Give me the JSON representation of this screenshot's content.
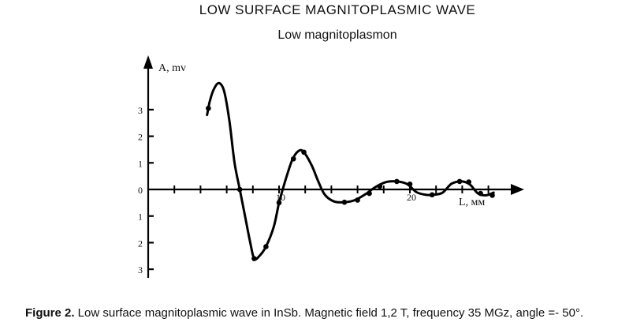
{
  "chart_data": {
    "type": "line",
    "title": "LOW SURFACE MAGNITOPLASMIC WAVE",
    "subtitle": "Low magnitoplasmon",
    "ylabel": "A, mv",
    "xlabel": "L, мм",
    "xlim": [
      0,
      28
    ],
    "ylim": [
      -3.2,
      4.5
    ],
    "y_ticks": [
      {
        "value": 3,
        "label": "3"
      },
      {
        "value": 2,
        "label": "2"
      },
      {
        "value": 1,
        "label": "1"
      },
      {
        "value": 0,
        "label": "0"
      },
      {
        "value": -1,
        "label": "1"
      },
      {
        "value": -2,
        "label": "2"
      },
      {
        "value": -3,
        "label": "3"
      }
    ],
    "x_ticks": [
      2,
      4,
      6,
      8,
      10,
      12,
      14,
      16,
      18,
      20,
      22,
      24,
      26
    ],
    "x_tick_labels": [
      {
        "value": 10,
        "label": "10"
      },
      {
        "value": 20,
        "label": "20"
      }
    ],
    "series": [
      {
        "name": "Low magnitoplasmon",
        "curve": [
          [
            4.5,
            2.8
          ],
          [
            4.7,
            3.3
          ],
          [
            5.0,
            3.75
          ],
          [
            5.4,
            4.0
          ],
          [
            5.8,
            3.7
          ],
          [
            6.2,
            2.6
          ],
          [
            6.6,
            1.0
          ],
          [
            7.0,
            0.0
          ],
          [
            7.4,
            -1.0
          ],
          [
            7.8,
            -2.0
          ],
          [
            8.1,
            -2.6
          ],
          [
            8.5,
            -2.5
          ],
          [
            9.0,
            -2.15
          ],
          [
            9.6,
            -1.4
          ],
          [
            10.0,
            -0.5
          ],
          [
            10.4,
            0.2
          ],
          [
            11.0,
            1.1
          ],
          [
            11.5,
            1.45
          ],
          [
            11.9,
            1.4
          ],
          [
            12.5,
            0.9
          ],
          [
            13.0,
            0.3
          ],
          [
            13.5,
            -0.2
          ],
          [
            14.2,
            -0.45
          ],
          [
            15.0,
            -0.48
          ],
          [
            15.8,
            -0.4
          ],
          [
            16.6,
            -0.18
          ],
          [
            17.4,
            0.1
          ],
          [
            18.2,
            0.28
          ],
          [
            19.0,
            0.3
          ],
          [
            19.8,
            0.2
          ],
          [
            20.5,
            -0.1
          ],
          [
            21.2,
            -0.2
          ],
          [
            21.8,
            -0.2
          ],
          [
            22.5,
            -0.12
          ],
          [
            23.2,
            0.22
          ],
          [
            24.0,
            0.3
          ],
          [
            24.6,
            0.18
          ],
          [
            25.2,
            -0.15
          ],
          [
            25.8,
            -0.22
          ],
          [
            26.4,
            -0.12
          ]
        ],
        "markers": [
          [
            4.6,
            3.05
          ],
          [
            7.0,
            0.0
          ],
          [
            8.1,
            -2.6
          ],
          [
            9.0,
            -2.15
          ],
          [
            10.0,
            -0.5
          ],
          [
            11.1,
            1.15
          ],
          [
            11.9,
            1.4
          ],
          [
            15.0,
            -0.48
          ],
          [
            16.0,
            -0.4
          ],
          [
            16.9,
            -0.15
          ],
          [
            17.7,
            0.12
          ],
          [
            19.0,
            0.3
          ],
          [
            20.0,
            0.2
          ],
          [
            21.7,
            -0.2
          ],
          [
            23.8,
            0.3
          ],
          [
            24.5,
            0.28
          ],
          [
            25.4,
            -0.15
          ],
          [
            26.3,
            -0.22
          ]
        ]
      }
    ]
  },
  "caption": {
    "label": "Figure 2.",
    "text": " Low surface magnitoplasmic wave in InSb. Magnetic field 1,2 T, frequency 35 MGz, angle =- 50°."
  }
}
